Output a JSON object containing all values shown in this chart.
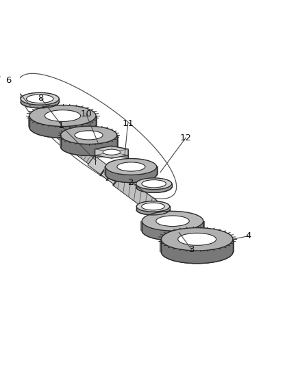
{
  "background_color": "#ffffff",
  "line_color": "#2a2a2a",
  "label_color": "#111111",
  "figsize": [
    4.38,
    5.33
  ],
  "dpi": 100,
  "tilt": -28,
  "gear_fill": "#b8b8b8",
  "gear_dark": "#888888",
  "shaft_fill": "#c0c0c0",
  "ring_fill": "#e0e0e0"
}
